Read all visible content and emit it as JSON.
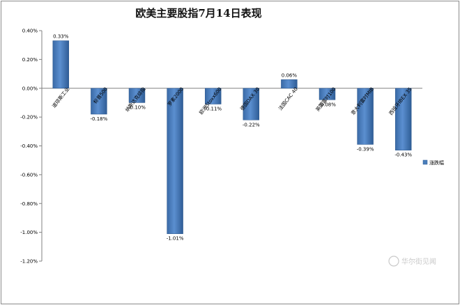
{
  "chart_data": {
    "type": "bar",
    "title": "欧美主要股指7月14日表现",
    "categories": [
      "道琼斯工业",
      "标普500",
      "纳斯达克综指",
      "罗素2000",
      "欧洲Stoxx600",
      "德国DAX 30",
      "法国CAC 40",
      "英国富时100",
      "意大利富时MIB",
      "西班牙IBEX 35"
    ],
    "series": [
      {
        "name": "涨跌幅",
        "values": [
          0.33,
          -0.18,
          -0.1,
          -1.01,
          -0.11,
          -0.22,
          0.06,
          -0.08,
          -0.39,
          -0.43
        ]
      }
    ],
    "value_labels": [
      "0.33%",
      "-0.18%",
      "-0.10%",
      "-1.01%",
      "-0.11%",
      "-0.22%",
      "0.06%",
      "-0.08%",
      "-0.39%",
      "-0.43%"
    ],
    "yticks": [
      "0.40%",
      "0.20%",
      "0.00%",
      "-0.20%",
      "-0.40%",
      "-0.60%",
      "-0.80%",
      "-1.00%",
      "-1.20%"
    ],
    "ylim": [
      -1.2,
      0.4
    ],
    "xlabel": "",
    "ylabel": "",
    "legend_position": "right",
    "grid": false,
    "bar_color": "#4a7ebb",
    "watermark": "华尔街见闻"
  }
}
